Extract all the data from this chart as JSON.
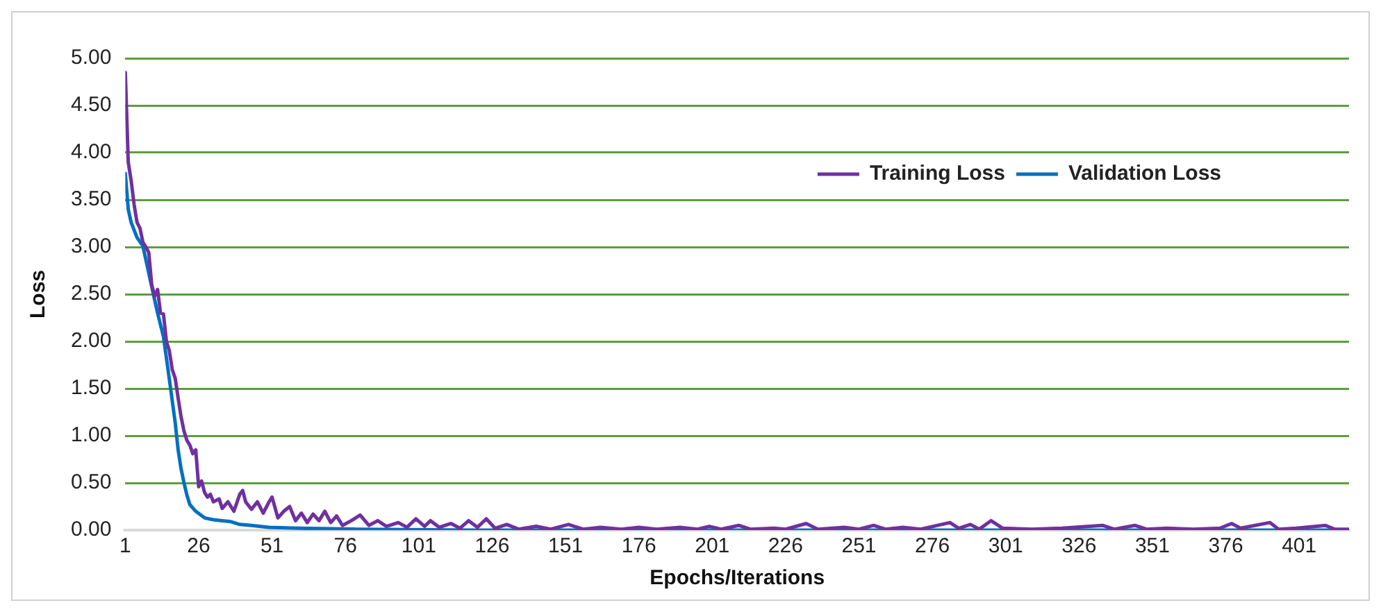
{
  "chart_data": {
    "type": "line",
    "xlabel": "Epochs/Iterations",
    "ylabel": "Loss",
    "xlim": [
      1,
      418
    ],
    "xticks": [
      1,
      26,
      51,
      76,
      101,
      126,
      151,
      176,
      201,
      226,
      251,
      276,
      301,
      326,
      351,
      376,
      401
    ],
    "ylim": [
      0,
      5
    ],
    "yticks": [
      {
        "value": 0,
        "label": "0.00"
      },
      {
        "value": 0.5,
        "label": "0.50"
      },
      {
        "value": 1,
        "label": "1.00"
      },
      {
        "value": 1.5,
        "label": "1.50"
      },
      {
        "value": 2,
        "label": "2.00"
      },
      {
        "value": 2.5,
        "label": "2.50"
      },
      {
        "value": 3,
        "label": "3.00"
      },
      {
        "value": 3.5,
        "label": "3.50"
      },
      {
        "value": 4,
        "label": "4.00"
      },
      {
        "value": 4.5,
        "label": "4.50"
      },
      {
        "value": 5,
        "label": "5.00"
      }
    ],
    "grid": "y",
    "legend": "top right",
    "marker": "none",
    "line_style": "solid",
    "series": [
      {
        "name": "Training Loss",
        "color": "#7030a0",
        "x": [
          1,
          2,
          3,
          4,
          5,
          6,
          7,
          8,
          9,
          10,
          11,
          12,
          13,
          14,
          15,
          16,
          17,
          18,
          19,
          20,
          21,
          22,
          23,
          24,
          25,
          26,
          27,
          28,
          29,
          30,
          31,
          33,
          34,
          36,
          38,
          40,
          41,
          42,
          44,
          46,
          48,
          50,
          51,
          53,
          55,
          57,
          59,
          61,
          63,
          65,
          67,
          69,
          71,
          73,
          75,
          78,
          81,
          84,
          87,
          90,
          94,
          97,
          100,
          103,
          105,
          108,
          112,
          115,
          118,
          121,
          124,
          127,
          131,
          135,
          141,
          146,
          152,
          157,
          163,
          170,
          176,
          182,
          190,
          196,
          200,
          204,
          210,
          214,
          222,
          226,
          233,
          237,
          246,
          251,
          256,
          260,
          266,
          272,
          282,
          285,
          289,
          292,
          296,
          300,
          310,
          320,
          334,
          338,
          345,
          349,
          356,
          365,
          374,
          378,
          381,
          391,
          394,
          400,
          410,
          413,
          418
        ],
        "values": [
          4.85,
          3.9,
          3.7,
          3.45,
          3.26,
          3.2,
          3.05,
          3.0,
          2.94,
          2.6,
          2.48,
          2.55,
          2.3,
          2.29,
          2.0,
          1.9,
          1.7,
          1.61,
          1.4,
          1.2,
          1.05,
          0.95,
          0.9,
          0.81,
          0.85,
          0.46,
          0.52,
          0.4,
          0.35,
          0.38,
          0.3,
          0.33,
          0.23,
          0.3,
          0.2,
          0.38,
          0.42,
          0.3,
          0.22,
          0.3,
          0.18,
          0.3,
          0.35,
          0.13,
          0.2,
          0.25,
          0.1,
          0.18,
          0.08,
          0.17,
          0.1,
          0.2,
          0.08,
          0.15,
          0.05,
          0.1,
          0.16,
          0.05,
          0.1,
          0.04,
          0.08,
          0.03,
          0.12,
          0.04,
          0.1,
          0.03,
          0.07,
          0.02,
          0.1,
          0.03,
          0.12,
          0.02,
          0.06,
          0.01,
          0.04,
          0.01,
          0.06,
          0.01,
          0.03,
          0.01,
          0.03,
          0.01,
          0.03,
          0.01,
          0.04,
          0.01,
          0.05,
          0.01,
          0.02,
          0.01,
          0.07,
          0.01,
          0.03,
          0.01,
          0.05,
          0.01,
          0.03,
          0.01,
          0.08,
          0.02,
          0.06,
          0.01,
          0.1,
          0.02,
          0.01,
          0.02,
          0.05,
          0.01,
          0.05,
          0.01,
          0.02,
          0.01,
          0.02,
          0.07,
          0.02,
          0.08,
          0.01,
          0.02,
          0.05,
          0.01,
          0.01
        ]
      },
      {
        "name": "Validation Loss",
        "color": "#0070c0",
        "x": [
          1,
          2,
          3,
          5,
          7,
          10,
          12,
          14,
          16,
          18,
          19,
          20,
          21,
          22,
          23,
          25,
          28,
          31,
          34,
          37,
          40,
          44,
          50,
          60,
          80,
          120,
          418
        ],
        "values": [
          3.78,
          3.4,
          3.26,
          3.1,
          3.01,
          2.58,
          2.3,
          2.05,
          1.6,
          1.14,
          0.85,
          0.65,
          0.5,
          0.37,
          0.27,
          0.2,
          0.13,
          0.11,
          0.1,
          0.09,
          0.06,
          0.05,
          0.03,
          0.02,
          0.01,
          0,
          0
        ]
      }
    ]
  }
}
